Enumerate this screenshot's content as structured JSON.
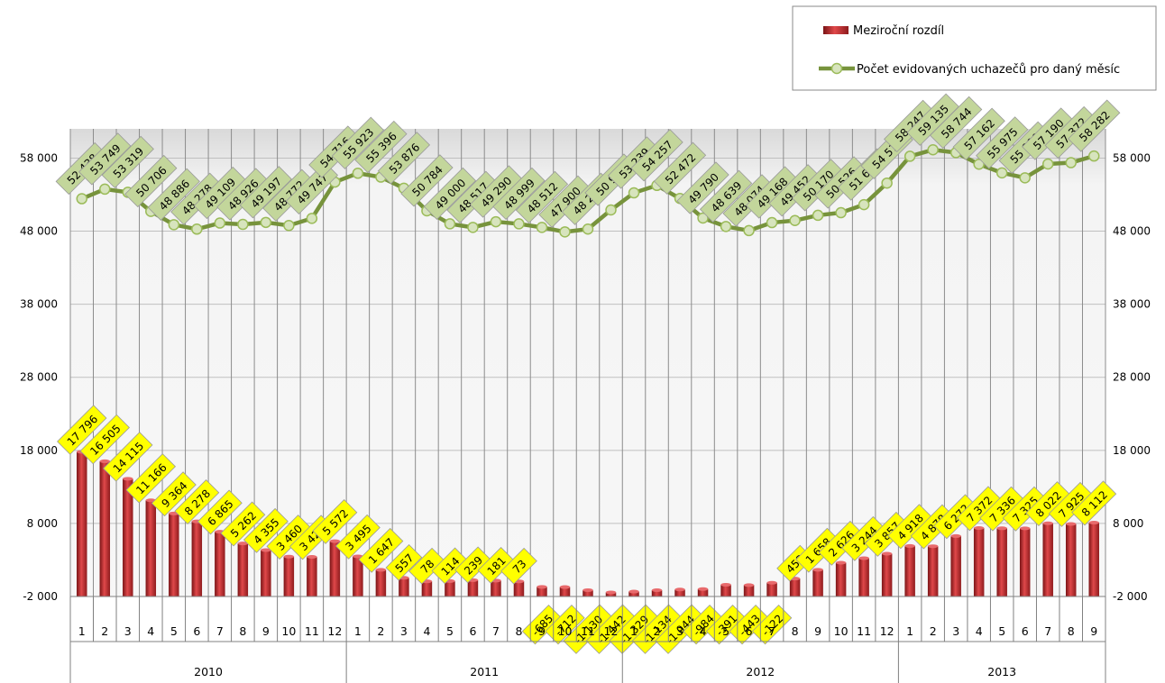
{
  "chart_data": {
    "type": "bar+line",
    "categories": [
      "1",
      "2",
      "3",
      "4",
      "5",
      "6",
      "7",
      "8",
      "9",
      "10",
      "11",
      "12",
      "1",
      "2",
      "3",
      "4",
      "5",
      "6",
      "7",
      "8",
      "9",
      "10",
      "11",
      "12",
      "1",
      "2",
      "3",
      "4",
      "5",
      "6",
      "7",
      "8",
      "9",
      "10",
      "11",
      "12",
      "1",
      "2",
      "3",
      "4",
      "5",
      "6",
      "7",
      "8",
      "9"
    ],
    "groups": [
      {
        "label": "2010",
        "count": 12
      },
      {
        "label": "2011",
        "count": 12
      },
      {
        "label": "2012",
        "count": 12
      },
      {
        "label": "2013",
        "count": 9
      }
    ],
    "series": [
      {
        "name": "Meziroční rozdíl",
        "type": "bar",
        "color": "#c0282d",
        "values": [
          17796,
          16505,
          14115,
          11166,
          9364,
          8278,
          6865,
          5262,
          4355,
          3460,
          3426,
          5572,
          3495,
          1647,
          557,
          78,
          114,
          239,
          181,
          73,
          -685,
          -712,
          -1130,
          -1442,
          -1329,
          -1134,
          -1044,
          -984,
          -391,
          -443,
          -122,
          453,
          1658,
          2626,
          3244,
          3857,
          4918,
          4878,
          6272,
          7372,
          7336,
          7325,
          8022,
          7925,
          8112
        ],
        "labels": [
          "17 796",
          "16 505",
          "14 115",
          "11 166",
          "9 364",
          "8 278",
          "6 865",
          "5 262",
          "4 355",
          "3 460",
          "3 426",
          "5 572",
          "3 495",
          "1 647",
          "557",
          "78",
          "114",
          "239",
          "181",
          "73",
          "-685",
          "-712",
          "-1 130",
          "-1 442",
          "-1 329",
          "-1 134",
          "-1 044",
          "-984",
          "-391",
          "-443",
          "-122",
          "453",
          "1 658",
          "2 626",
          "3 244",
          "3 857",
          "4 918",
          "4 878",
          "6 272",
          "7 372",
          "7 336",
          "7 325",
          "8 022",
          "7 925",
          "8 112"
        ]
      },
      {
        "name": "Počet evidovaných uchazečů pro daný měsíc",
        "type": "line",
        "color": "#77933c",
        "values": [
          52438,
          53749,
          53319,
          50706,
          48886,
          48278,
          49109,
          48926,
          49197,
          48772,
          49747,
          54716,
          55923,
          55396,
          53876,
          50784,
          49000,
          48517,
          49290,
          48999,
          48512,
          47900,
          48280,
          50900,
          53239,
          54257,
          52472,
          49790,
          48639,
          48074,
          49168,
          49452,
          50170,
          50526,
          51626,
          54573,
          58247,
          59135,
          58744,
          57162,
          55975,
          55299,
          57190,
          57372,
          58282
        ],
        "labels": [
          "52 438",
          "53 749",
          "53 319",
          "50 706",
          "48 886",
          "48 278",
          "49 109",
          "48 926",
          "49 197",
          "48 772",
          "49 747",
          "54 716",
          "55 923",
          "55 396",
          "53 876",
          "50 784",
          "49 000",
          "48 517",
          "49 290",
          "48 999",
          "48 512",
          "47 900",
          "48 280",
          "50 900",
          "53 239",
          "54 257",
          "52 472",
          "49 790",
          "48 639",
          "48 074",
          "49 168",
          "49 452",
          "50 170",
          "50 526",
          "51 626",
          "54 573",
          "58 247",
          "59 135",
          "58 744",
          "57 162",
          "55 975",
          "55 299",
          "57 190",
          "57 372",
          "58 282"
        ]
      }
    ],
    "ylim": [
      -2000,
      62000
    ],
    "yticks": [
      -2000,
      8000,
      18000,
      28000,
      38000,
      48000,
      58000
    ],
    "ytick_labels": [
      "-2 000",
      "8 000",
      "18 000",
      "28 000",
      "38 000",
      "48 000",
      "58 000"
    ],
    "grid": true,
    "legend_position": "top-right",
    "colors": {
      "bar": "#c0282d",
      "bar_label_bg": "#ffff00",
      "line": "#77933c",
      "marker_fill": "#d7e4bd",
      "line_label_bg": "#c3d69b",
      "plot_bg": "#f2f2f2"
    }
  }
}
